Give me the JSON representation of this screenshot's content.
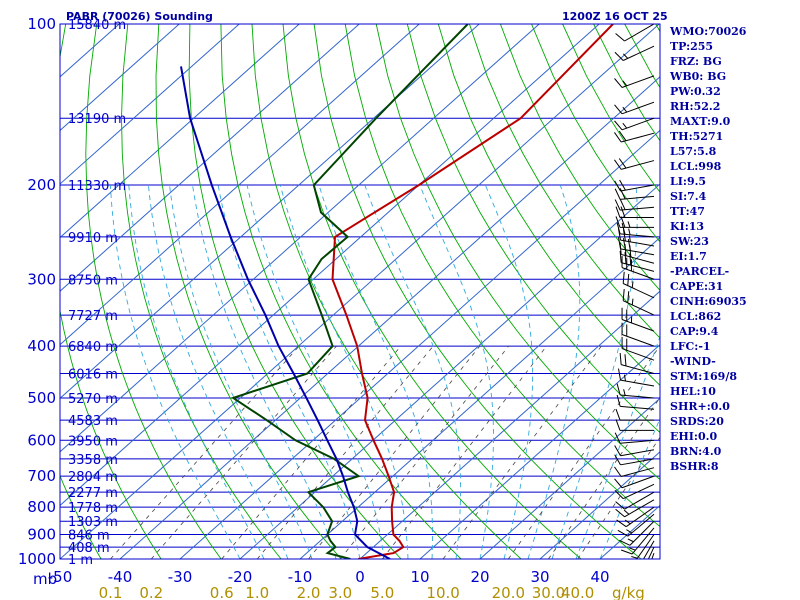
{
  "header": {
    "station": "PABR (70026) Sounding",
    "time": "1200Z 16 OCT 25"
  },
  "colors": {
    "frame": "#0000cc",
    "isotherm": "#3366cc",
    "dry_adiabat": "#00aa00",
    "moist_adiabat": "#33aadd",
    "mixing_ratio": "#444444",
    "temperature": "#bb0000",
    "dewpoint": "#004400",
    "parcel": "#0000aa",
    "wind": "#000000"
  },
  "chart_data": {
    "type": "skew-t log-p sounding",
    "pressure_axis": {
      "labels": [
        "100",
        "200",
        "300",
        "400",
        "500",
        "600",
        "700",
        "800",
        "900",
        "1000"
      ],
      "unit": "mb",
      "range": [
        1000,
        100
      ],
      "scale": "log"
    },
    "temperature_axis": {
      "labels": [
        "-50",
        "-40",
        "-30",
        "-20",
        "-10",
        "0",
        "10",
        "20",
        "30",
        "40"
      ],
      "range": [
        -50,
        50
      ],
      "unit": "C"
    },
    "mixing_ratio_labels": [
      "0.1",
      "0.2",
      "0.6",
      "1.0",
      "2.0",
      "3.0",
      "5.0",
      "10.0",
      "20.0",
      "30.0",
      "40.0"
    ],
    "mixing_ratio_unit": "g/kg",
    "height_labels": [
      {
        "p": 1000,
        "text": "1 m"
      },
      {
        "p": 950,
        "text": "408 m"
      },
      {
        "p": 900,
        "text": "846 m"
      },
      {
        "p": 850,
        "text": "1303 m"
      },
      {
        "p": 800,
        "text": "1778 m"
      },
      {
        "p": 750,
        "text": "2277 m"
      },
      {
        "p": 700,
        "text": "2804 m"
      },
      {
        "p": 650,
        "text": "3358 m"
      },
      {
        "p": 600,
        "text": "3950 m"
      },
      {
        "p": 550,
        "text": "4583 m"
      },
      {
        "p": 500,
        "text": "5270 m"
      },
      {
        "p": 450,
        "text": "6016 m"
      },
      {
        "p": 400,
        "text": "6840 m"
      },
      {
        "p": 350,
        "text": "7727 m"
      },
      {
        "p": 300,
        "text": "8750 m"
      },
      {
        "p": 250,
        "text": "9910 m"
      },
      {
        "p": 200,
        "text": "11330 m"
      },
      {
        "p": 150,
        "text": "13190 m"
      },
      {
        "p": 100,
        "text": "15840 m"
      }
    ],
    "series": [
      {
        "name": "Temperature",
        "points": [
          [
            1000,
            -0.3
          ],
          [
            975,
            4.5
          ],
          [
            950,
            5.0
          ],
          [
            925,
            3.2
          ],
          [
            900,
            1.0
          ],
          [
            850,
            -1.7
          ],
          [
            800,
            -4.4
          ],
          [
            750,
            -6.8
          ],
          [
            700,
            -10.7
          ],
          [
            650,
            -15.0
          ],
          [
            600,
            -19.9
          ],
          [
            550,
            -25.1
          ],
          [
            500,
            -28.8
          ],
          [
            450,
            -34.3
          ],
          [
            400,
            -40.2
          ],
          [
            350,
            -47.8
          ],
          [
            300,
            -56.8
          ],
          [
            250,
            -64.3
          ],
          [
            200,
            -60.0
          ],
          [
            150,
            -55.5
          ],
          [
            100,
            -57.7
          ]
        ]
      },
      {
        "name": "Dewpoint",
        "points": [
          [
            1000,
            -1.6
          ],
          [
            975,
            -6.5
          ],
          [
            950,
            -6.3
          ],
          [
            925,
            -8.3
          ],
          [
            900,
            -10.0
          ],
          [
            850,
            -11.7
          ],
          [
            800,
            -15.8
          ],
          [
            750,
            -21.1
          ],
          [
            700,
            -15.7
          ],
          [
            650,
            -23.0
          ],
          [
            600,
            -32.9
          ],
          [
            550,
            -41.5
          ],
          [
            500,
            -51.2
          ],
          [
            450,
            -43.4
          ],
          [
            400,
            -44.3
          ],
          [
            350,
            -51.9
          ],
          [
            300,
            -60.8
          ],
          [
            275,
            -62.4
          ],
          [
            250,
            -62.2
          ],
          [
            225,
            -71.2
          ],
          [
            200,
            -77.5
          ],
          [
            150,
            -79.6
          ],
          [
            100,
            -81.9
          ]
        ]
      },
      {
        "name": "Parcel",
        "points": [
          [
            1000,
            5.0
          ],
          [
            950,
            -1.0
          ],
          [
            900,
            -5.4
          ],
          [
            850,
            -7.5
          ],
          [
            800,
            -10.7
          ],
          [
            750,
            -14.5
          ],
          [
            700,
            -18.3
          ],
          [
            650,
            -22.6
          ],
          [
            600,
            -27.6
          ],
          [
            550,
            -33.0
          ],
          [
            500,
            -39.0
          ],
          [
            450,
            -45.7
          ],
          [
            400,
            -53.3
          ],
          [
            350,
            -61.3
          ],
          [
            300,
            -70.9
          ],
          [
            250,
            -81.7
          ],
          [
            200,
            -94.5
          ],
          [
            150,
            -110.6
          ],
          [
            120,
            -121.8
          ]
        ]
      }
    ],
    "wind_barbs": [
      {
        "p": 1000,
        "dir": 190,
        "spd": 10
      },
      {
        "p": 975,
        "dir": 200,
        "spd": 20
      },
      {
        "p": 950,
        "dir": 205,
        "spd": 20
      },
      {
        "p": 925,
        "dir": 210,
        "spd": 20
      },
      {
        "p": 900,
        "dir": 215,
        "spd": 15
      },
      {
        "p": 875,
        "dir": 220,
        "spd": 15
      },
      {
        "p": 850,
        "dir": 225,
        "spd": 15
      },
      {
        "p": 825,
        "dir": 230,
        "spd": 15
      },
      {
        "p": 800,
        "dir": 235,
        "spd": 15
      },
      {
        "p": 775,
        "dir": 240,
        "spd": 15
      },
      {
        "p": 750,
        "dir": 240,
        "spd": 10
      },
      {
        "p": 725,
        "dir": 245,
        "spd": 10
      },
      {
        "p": 700,
        "dir": 250,
        "spd": 10
      },
      {
        "p": 675,
        "dir": 255,
        "spd": 10
      },
      {
        "p": 650,
        "dir": 260,
        "spd": 10
      },
      {
        "p": 625,
        "dir": 260,
        "spd": 10
      },
      {
        "p": 600,
        "dir": 265,
        "spd": 10
      },
      {
        "p": 575,
        "dir": 270,
        "spd": 10
      },
      {
        "p": 550,
        "dir": 270,
        "spd": 10
      },
      {
        "p": 525,
        "dir": 275,
        "spd": 10
      },
      {
        "p": 500,
        "dir": 275,
        "spd": 15
      },
      {
        "p": 475,
        "dir": 280,
        "spd": 15
      },
      {
        "p": 450,
        "dir": 285,
        "spd": 20
      },
      {
        "p": 425,
        "dir": 290,
        "spd": 20
      },
      {
        "p": 400,
        "dir": 290,
        "spd": 20
      },
      {
        "p": 375,
        "dir": 290,
        "spd": 25
      },
      {
        "p": 350,
        "dir": 295,
        "spd": 25
      },
      {
        "p": 325,
        "dir": 295,
        "spd": 25
      },
      {
        "p": 300,
        "dir": 290,
        "spd": 30
      },
      {
        "p": 290,
        "dir": 285,
        "spd": 30
      },
      {
        "p": 280,
        "dir": 285,
        "spd": 30
      },
      {
        "p": 270,
        "dir": 280,
        "spd": 30
      },
      {
        "p": 260,
        "dir": 280,
        "spd": 25
      },
      {
        "p": 250,
        "dir": 275,
        "spd": 25
      },
      {
        "p": 240,
        "dir": 270,
        "spd": 25
      },
      {
        "p": 230,
        "dir": 270,
        "spd": 20
      },
      {
        "p": 220,
        "dir": 265,
        "spd": 20
      },
      {
        "p": 210,
        "dir": 265,
        "spd": 20
      },
      {
        "p": 200,
        "dir": 260,
        "spd": 20
      },
      {
        "p": 180,
        "dir": 255,
        "spd": 20
      },
      {
        "p": 160,
        "dir": 255,
        "spd": 20
      },
      {
        "p": 150,
        "dir": 250,
        "spd": 15
      },
      {
        "p": 140,
        "dir": 250,
        "spd": 15
      },
      {
        "p": 125,
        "dir": 250,
        "spd": 15
      },
      {
        "p": 110,
        "dir": 245,
        "spd": 15
      },
      {
        "p": 100,
        "dir": 240,
        "spd": 10
      }
    ]
  },
  "indices": [
    "WMO:70026",
    "TP:255",
    "FRZ: BG",
    "WB0: BG",
    "PW:0.32",
    "RH:52.2",
    "MAXT:9.0",
    "TH:5271",
    "L57:5.8",
    "LCL:998",
    "LI:9.5",
    "SI:7.4",
    "TT:47",
    "KI:13",
    "SW:23",
    "EI:1.7",
    "-PARCEL-",
    "CAPE:31",
    "CINH:69035",
    "LCL:862",
    "CAP:9.4",
    "LFC:-1",
    "-WIND-",
    "STM:169/8",
    "HEL:10",
    "SHR+:0.0",
    "SRDS:20",
    "EHI:0.0",
    "BRN:4.0",
    "BSHR:8"
  ]
}
